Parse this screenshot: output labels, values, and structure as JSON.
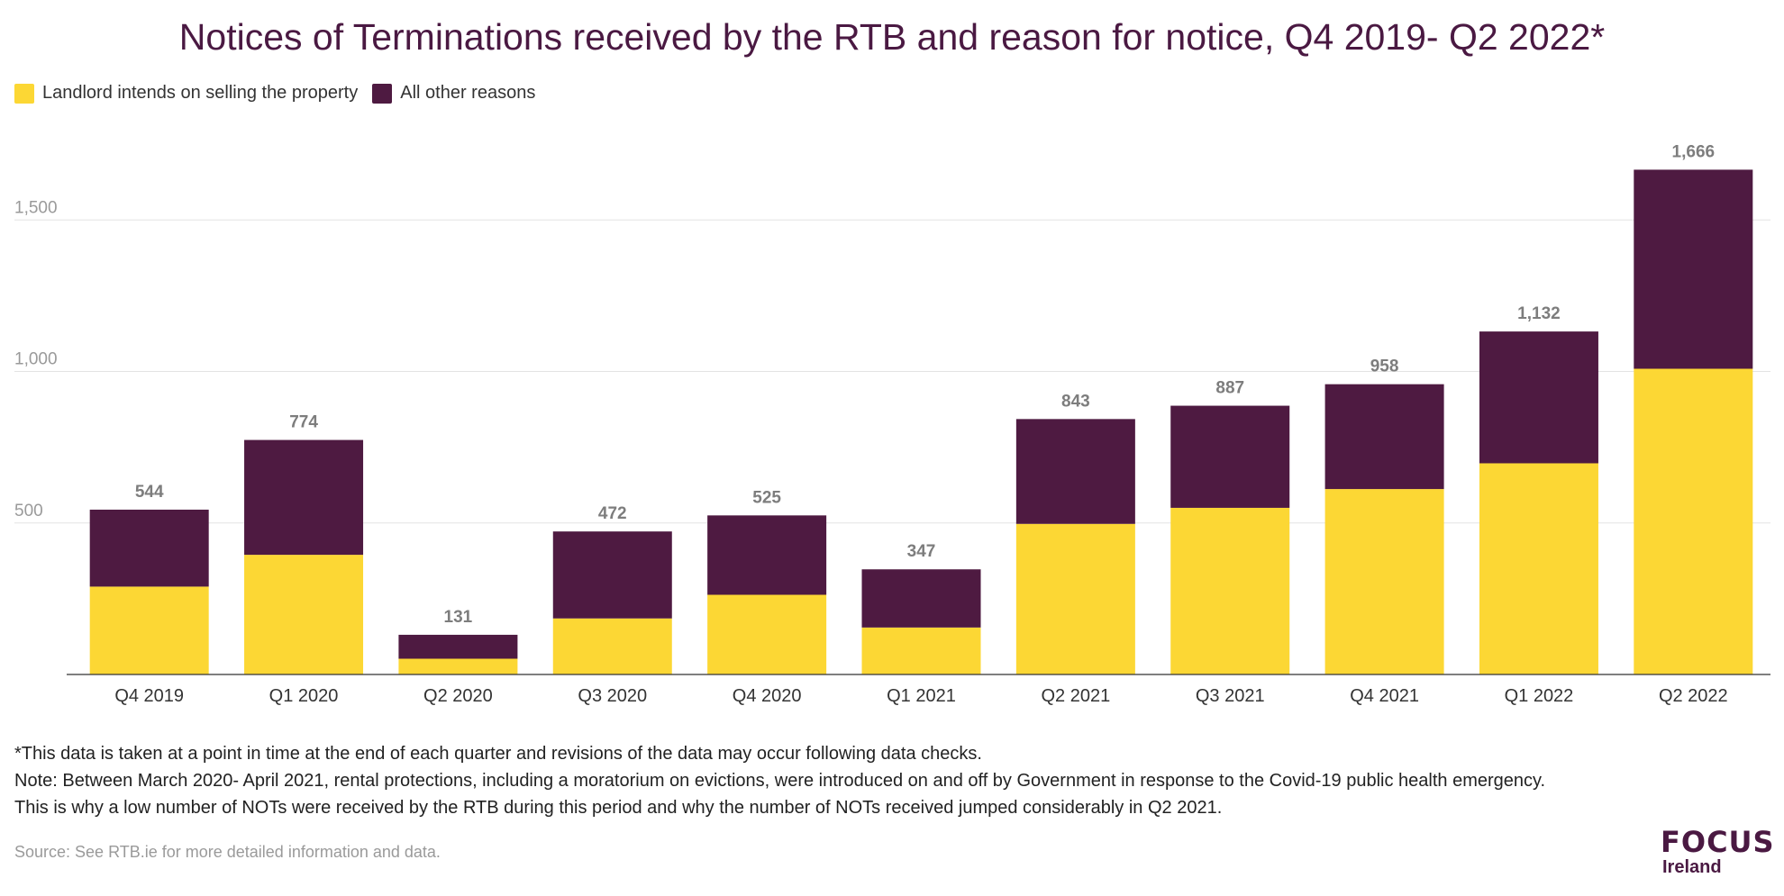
{
  "title": "Notices of Terminations received by the RTB and reason for notice, Q4 2019- Q2 2022*",
  "legend": [
    {
      "label": "Landlord intends on selling the property",
      "color": "#fcd734"
    },
    {
      "label": "All other reasons",
      "color": "#4e1a41"
    }
  ],
  "notes": {
    "line1": "*This data is taken at a point in time at the end of each quarter and revisions of the data may occur following data checks.",
    "line2": "Note: Between March 2020- April 2021, rental protections, including a moratorium on evictions, were introduced on and off by Government in response to the Covid-19 public health emergency.",
    "line3": "This is why a low number of NOTs were received by the RTB during this period and why the number of NOTs received jumped considerably in Q2 2021."
  },
  "source": "Source: See RTB.ie for more detailed information and data.",
  "logo": {
    "main": "FOCUS",
    "sub": "Ireland"
  },
  "chart_data": {
    "type": "bar",
    "stacked": true,
    "categories": [
      "Q4 2019",
      "Q1 2020",
      "Q2 2020",
      "Q3 2020",
      "Q4 2020",
      "Q1 2021",
      "Q2 2021",
      "Q3 2021",
      "Q4 2021",
      "Q1 2022",
      "Q2 2022"
    ],
    "series": [
      {
        "name": "Landlord intends on selling the property",
        "color": "#fcd734",
        "values": [
          290,
          395,
          52,
          185,
          263,
          155,
          497,
          550,
          612,
          697,
          1009
        ]
      },
      {
        "name": "All other reasons",
        "color": "#4e1a41",
        "values": [
          254,
          379,
          79,
          287,
          262,
          192,
          346,
          337,
          346,
          435,
          657
        ]
      }
    ],
    "totals": [
      544,
      774,
      131,
      472,
      525,
      347,
      843,
      887,
      958,
      1132,
      1666
    ],
    "total_labels": [
      "544",
      "774",
      "131",
      "472",
      "525",
      "347",
      "843",
      "887",
      "958",
      "1,132",
      "1,666"
    ],
    "yticks": [
      500,
      1000,
      1500
    ],
    "ytick_labels": [
      "500",
      "1,000",
      "1,500"
    ],
    "ylim": [
      0,
      1700
    ],
    "grid": true,
    "legend_position": "top-left"
  }
}
